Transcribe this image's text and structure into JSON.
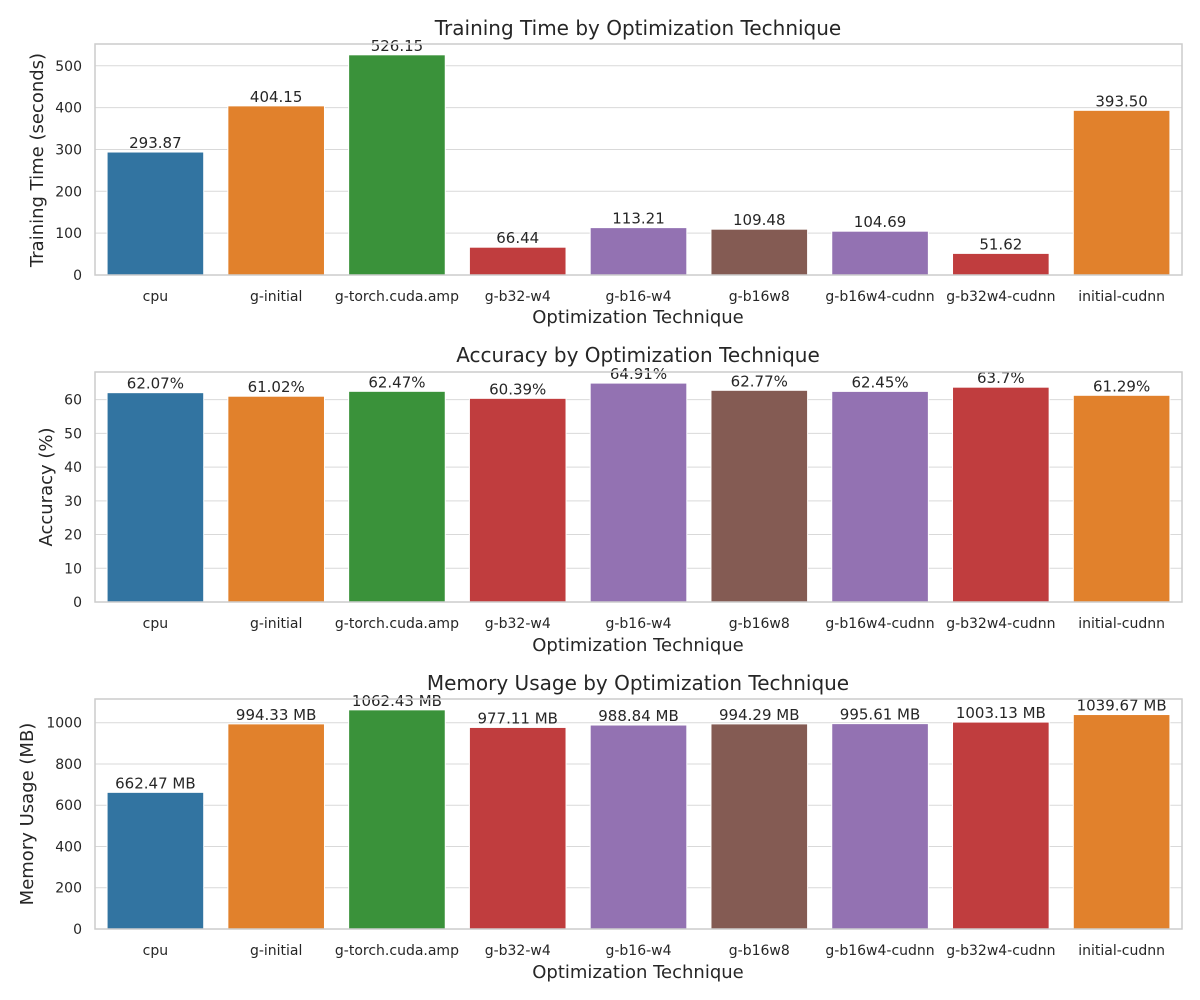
{
  "chart_data": [
    {
      "type": "bar",
      "title": "Training Time by Optimization Technique",
      "xlabel": "Optimization Technique",
      "ylabel": "Training Time (seconds)",
      "categories": [
        "cpu",
        "g-initial",
        "g-torch.cuda.amp",
        "g-b32-w4",
        "g-b16-w4",
        "g-b16w8",
        "g-b16w4-cudnn",
        "g-b32w4-cudnn",
        "initial-cudnn"
      ],
      "values": [
        293.87,
        404.15,
        526.15,
        66.44,
        113.21,
        109.48,
        104.69,
        51.62,
        393.5
      ],
      "data_labels": [
        "293.87",
        "404.15",
        "526.15",
        "66.44",
        "113.21",
        "109.48",
        "104.69",
        "51.62",
        "393.50"
      ],
      "ylim": [
        0,
        552
      ],
      "yticks": [
        0,
        100,
        200,
        300,
        400,
        500
      ],
      "grid": true
    },
    {
      "type": "bar",
      "title": "Accuracy by Optimization Technique",
      "xlabel": "Optimization Technique",
      "ylabel": "Accuracy (%)",
      "categories": [
        "cpu",
        "g-initial",
        "g-torch.cuda.amp",
        "g-b32-w4",
        "g-b16-w4",
        "g-b16w8",
        "g-b16w4-cudnn",
        "g-b32w4-cudnn",
        "initial-cudnn"
      ],
      "values": [
        62.07,
        61.02,
        62.47,
        60.39,
        64.91,
        62.77,
        62.45,
        63.7,
        61.29
      ],
      "data_labels": [
        "62.07%",
        "61.02%",
        "62.47%",
        "60.39%",
        "64.91%",
        "62.77%",
        "62.45%",
        "63.7%",
        "61.29%"
      ],
      "ylim": [
        0,
        68.2
      ],
      "yticks": [
        0,
        10,
        20,
        30,
        40,
        50,
        60
      ],
      "grid": true
    },
    {
      "type": "bar",
      "title": "Memory Usage by Optimization Technique",
      "xlabel": "Optimization Technique",
      "ylabel": "Memory Usage (MB)",
      "categories": [
        "cpu",
        "g-initial",
        "g-torch.cuda.amp",
        "g-b32-w4",
        "g-b16-w4",
        "g-b16w8",
        "g-b16w4-cudnn",
        "g-b32w4-cudnn",
        "initial-cudnn"
      ],
      "values": [
        662.47,
        994.33,
        1062.43,
        977.11,
        988.84,
        994.29,
        995.61,
        1003.13,
        1039.67
      ],
      "data_labels": [
        "662.47 MB",
        "994.33 MB",
        "1062.43 MB",
        "977.11 MB",
        "988.84 MB",
        "994.29 MB",
        "995.61 MB",
        "1003.13 MB",
        "1039.67 MB"
      ],
      "ylim": [
        0,
        1115
      ],
      "yticks": [
        0,
        200,
        400,
        600,
        800,
        1000
      ],
      "grid": true
    }
  ],
  "colors": [
    "#3274a1",
    "#e1812c",
    "#3a923a",
    "#c03d3e",
    "#9372b2",
    "#845b53",
    "#9372b2",
    "#c03d3e",
    "#e1812c"
  ]
}
